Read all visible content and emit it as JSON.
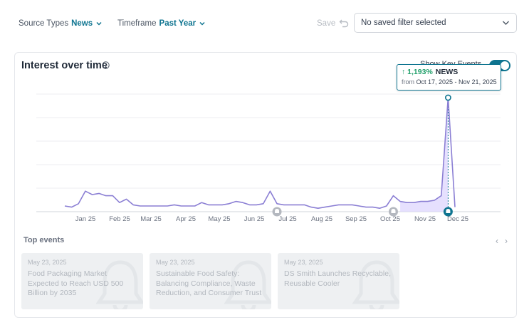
{
  "filters": {
    "source_types": {
      "label": "Source Types",
      "value": "News"
    },
    "timeframe": {
      "label": "Timeframe",
      "value": "Past Year"
    },
    "save_label": "Save",
    "saved_filter_value": "No saved filter selected"
  },
  "card": {
    "title": "Interest over time",
    "key_events_label": "Show Key Events",
    "key_events_enabled": true
  },
  "tooltip": {
    "change": "↑ 1,193%",
    "label": "NEWS",
    "from_label": "from",
    "range": "Oct 17, 2025 - Nov 21, 2025"
  },
  "chart_data": {
    "type": "area",
    "title": "Interest over time",
    "x_tick_labels": [
      "Jan 25",
      "Feb 25",
      "Mar 25",
      "Apr 25",
      "May 25",
      "Jun 25",
      "Jul 25",
      "Aug 25",
      "Sep 25",
      "Oct 25",
      "Nov 25",
      "Dec 25"
    ],
    "y_range": [
      0,
      100
    ],
    "y_axis_labels_visible": false,
    "grid": true,
    "series": [
      {
        "values": [
          5,
          4,
          7,
          18,
          15,
          16,
          14,
          14,
          8,
          11,
          6,
          5,
          5,
          5,
          5,
          5,
          6,
          5,
          5,
          5,
          8,
          6,
          6,
          6,
          7,
          9,
          8,
          6,
          6,
          7,
          18,
          7,
          6,
          6,
          6,
          6,
          4,
          3,
          4,
          5,
          6,
          6,
          6,
          5,
          4,
          4,
          3,
          5,
          14,
          9,
          8,
          8,
          9,
          9,
          10,
          14,
          100,
          4
        ],
        "highlight_range": [
          49,
          56
        ]
      }
    ],
    "event_markers": [
      {
        "at_index": 31,
        "highlighted": false
      },
      {
        "at_index": 48,
        "highlighted": false
      },
      {
        "at_index": 56,
        "highlighted": true
      }
    ],
    "peak_index": 56,
    "colors": {
      "line": "#8b7fd4",
      "fill": "#ddd6fe",
      "marker": "#0e7490",
      "marker_inactive": "#b4b8bf"
    }
  },
  "top_events": {
    "title": "Top events",
    "items": [
      {
        "date": "May 23, 2025",
        "title": "Food Packaging Market Expected to Reach USD 500 Billion by 2035"
      },
      {
        "date": "May 23, 2025",
        "title": "Sustainable Food Safety: Balancing Compliance, Waste Reduction, and Consumer Trust"
      },
      {
        "date": "May 23, 2025",
        "title": "DS Smith Launches Recyclable, Reusable Cooler"
      }
    ]
  }
}
